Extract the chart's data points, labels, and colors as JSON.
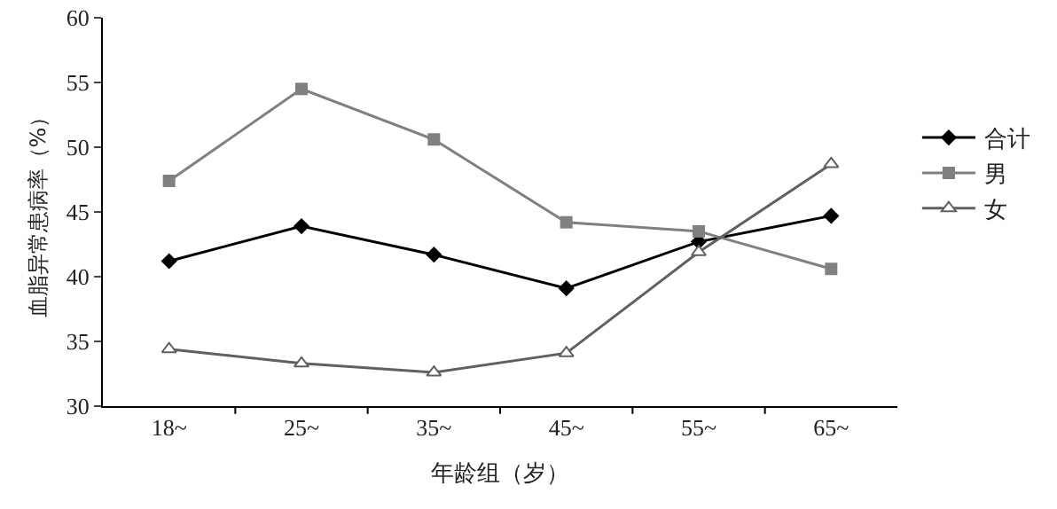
{
  "chart_data": {
    "type": "line",
    "xlabel": "年龄组（岁）",
    "ylabel": "血脂异常患病率（%）",
    "categories": [
      "18~",
      "25~",
      "35~",
      "45~",
      "55~",
      "65~"
    ],
    "series": [
      {
        "name": "合计",
        "color": "#000000",
        "marker": "diamond",
        "values": [
          41.2,
          43.9,
          41.7,
          39.1,
          42.7,
          44.7
        ]
      },
      {
        "name": "男",
        "color": "#808080",
        "marker": "square",
        "values": [
          47.4,
          54.5,
          50.6,
          44.2,
          43.5,
          40.6
        ]
      },
      {
        "name": "女",
        "color": "#606060",
        "marker": "triangle",
        "values": [
          34.4,
          33.3,
          32.6,
          34.1,
          41.9,
          48.7
        ]
      }
    ],
    "ylim": [
      30,
      60
    ],
    "yticks": [
      30,
      35,
      40,
      45,
      50,
      55,
      60
    ],
    "grid": false,
    "legend": "right",
    "line_style": "solid"
  }
}
